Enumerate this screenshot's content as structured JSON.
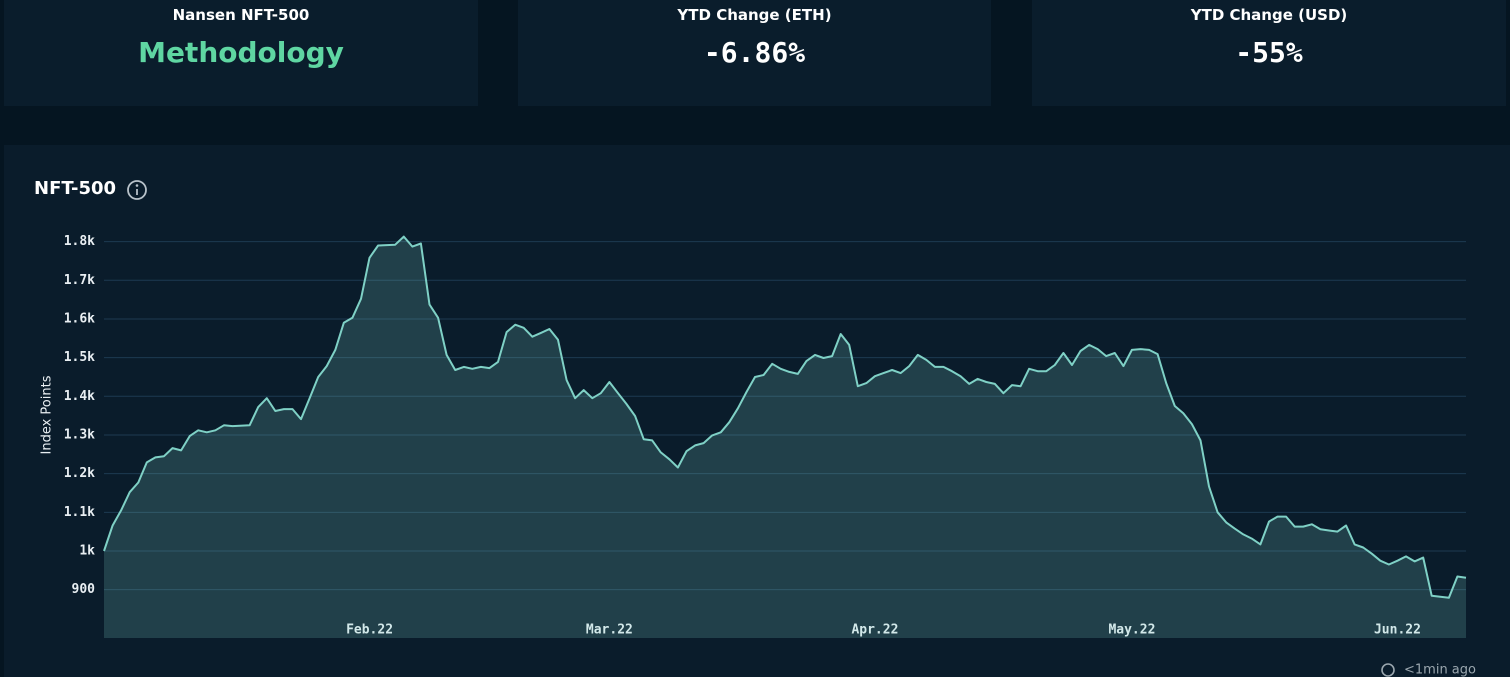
{
  "cards": [
    {
      "title": "Nansen NFT-500",
      "value": "Methodology"
    },
    {
      "title": "YTD Change (ETH)",
      "value": "-6.86%"
    },
    {
      "title": "YTD Change (USD)",
      "value": "-55%"
    }
  ],
  "chart_data": {
    "type": "area",
    "title": "NFT-500",
    "y_label": "Index Points",
    "color": "#7fd1c6",
    "grid": true,
    "x": [
      0,
      1,
      2,
      3,
      4,
      5,
      6,
      7,
      8,
      9,
      10,
      11,
      12,
      13,
      14,
      15,
      17,
      18,
      19,
      20,
      21,
      22,
      23,
      24,
      25,
      26,
      27,
      28,
      29,
      30,
      31,
      32,
      34,
      35,
      36,
      37,
      38,
      39,
      40,
      41,
      42,
      43,
      44,
      45,
      46,
      47,
      48,
      49,
      50,
      51,
      52,
      53,
      54,
      55,
      56,
      57,
      58,
      59,
      60,
      61,
      62,
      63,
      64,
      65,
      66,
      67,
      68,
      69,
      70,
      71,
      72,
      73,
      74,
      75,
      76,
      77,
      78,
      79,
      80,
      81,
      82,
      83,
      84,
      85,
      86,
      87,
      88,
      89,
      90,
      91,
      92,
      93,
      94,
      95,
      96,
      97,
      98,
      99,
      100,
      101,
      102,
      103,
      104,
      105,
      106,
      107,
      108,
      109,
      110,
      111,
      112,
      113,
      114,
      115,
      116,
      117,
      118,
      119,
      120,
      121,
      122,
      123,
      124,
      125,
      126,
      127,
      128,
      129,
      130,
      131,
      132,
      133,
      134,
      135,
      136,
      137,
      138,
      139,
      140,
      141,
      142,
      143,
      144,
      145,
      146,
      147,
      148,
      149,
      150,
      151,
      152,
      153,
      154,
      155,
      157,
      158,
      159
    ],
    "values": [
      1000,
      1066,
      1105,
      1152,
      1177,
      1229,
      1242,
      1245,
      1266,
      1260,
      1297,
      1312,
      1307,
      1312,
      1325,
      1323,
      1325,
      1372,
      1395,
      1362,
      1367,
      1367,
      1341,
      1395,
      1450,
      1478,
      1520,
      1590,
      1603,
      1652,
      1758,
      1790,
      1792,
      1813,
      1787,
      1795,
      1637,
      1603,
      1507,
      1468,
      1476,
      1471,
      1476,
      1473,
      1489,
      1566,
      1585,
      1577,
      1554,
      1564,
      1574,
      1546,
      1442,
      1395,
      1416,
      1395,
      1408,
      1437,
      1408,
      1380,
      1349,
      1289,
      1286,
      1255,
      1237,
      1216,
      1258,
      1273,
      1279,
      1299,
      1307,
      1333,
      1369,
      1411,
      1450,
      1455,
      1484,
      1471,
      1463,
      1458,
      1491,
      1507,
      1499,
      1504,
      1561,
      1533,
      1426,
      1434,
      1452,
      1460,
      1468,
      1460,
      1478,
      1507,
      1494,
      1476,
      1476,
      1465,
      1452,
      1432,
      1445,
      1437,
      1432,
      1408,
      1429,
      1426,
      1471,
      1465,
      1465,
      1481,
      1512,
      1481,
      1517,
      1533,
      1522,
      1504,
      1512,
      1478,
      1520,
      1522,
      1520,
      1509,
      1434,
      1375,
      1356,
      1328,
      1286,
      1167,
      1100,
      1074,
      1058,
      1043,
      1032,
      1017,
      1076,
      1089,
      1089,
      1063,
      1063,
      1069,
      1056,
      1053,
      1050,
      1066,
      1017,
      1009,
      993,
      975,
      965,
      975,
      986,
      973,
      983,
      884,
      879,
      934,
      931
    ],
    "xlim": [
      0,
      159
    ],
    "xticks": [
      {
        "value": 31,
        "label": "Feb.22"
      },
      {
        "value": 59,
        "label": "Mar.22"
      },
      {
        "value": 90,
        "label": "Apr.22"
      },
      {
        "value": 120,
        "label": "May.22"
      },
      {
        "value": 151,
        "label": "Jun.22"
      }
    ],
    "ylim": [
      775,
      1830
    ],
    "yticks": [
      900,
      {
        "value": 1000,
        "label": "1k"
      },
      {
        "value": 1100,
        "label": "1.1k"
      },
      {
        "value": 1200,
        "label": "1.2k"
      },
      {
        "value": 1300,
        "label": "1.3k"
      },
      {
        "value": 1400,
        "label": "1.4k"
      },
      {
        "value": 1500,
        "label": "1.5k"
      },
      {
        "value": 1600,
        "label": "1.6k"
      },
      {
        "value": 1700,
        "label": "1.7k"
      },
      {
        "value": 1800,
        "label": "1.8k"
      }
    ]
  },
  "updated": "<1min ago"
}
